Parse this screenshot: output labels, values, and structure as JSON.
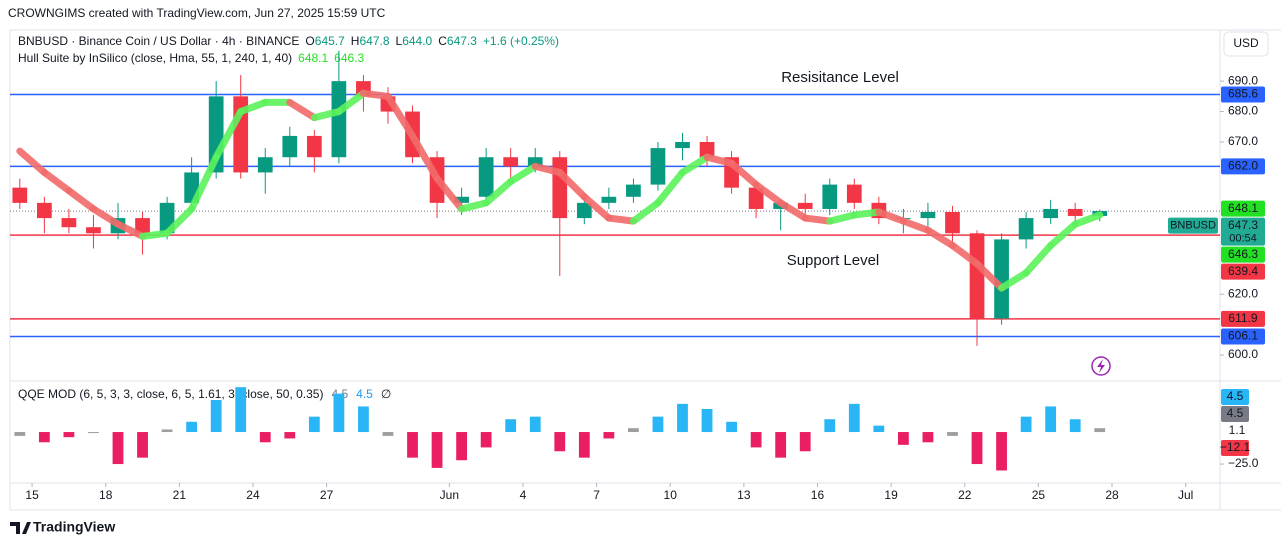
{
  "header": {
    "credit": "CROWNGIMS created with TradingView.com, Jun 27, 2025 15:59 UTC",
    "currency": "USD",
    "brand": "TradingView"
  },
  "chart_data": [
    {
      "type": "candlestick",
      "symbol": "BNBUSD · Binance Coin / US Dollar · 4h · BINANCE",
      "ohlc_legend": [
        {
          "key": "O",
          "value": 645.7
        },
        {
          "key": "H",
          "value": 647.8
        },
        {
          "key": "L",
          "value": 644,
          "label": "644.0"
        },
        {
          "key": "C",
          "value": 647.3
        }
      ],
      "change": "+1.6 (+0.25%)",
      "indicator": {
        "name": "Hull Suite by InSilico (close, Hma, 55, 1, 240, 1, 40)",
        "values": [
          648.1,
          646.3
        ],
        "color": "#22e022"
      },
      "x": [
        0,
        1,
        2,
        3,
        4,
        5,
        6,
        7,
        8,
        9,
        10,
        11,
        12,
        13,
        14,
        15,
        16,
        17,
        18,
        19,
        20,
        21,
        22,
        23,
        24,
        25,
        26,
        27,
        28,
        29,
        30,
        31,
        32,
        33,
        34,
        35,
        36,
        37,
        38,
        39,
        40,
        41,
        42,
        43,
        44
      ],
      "open": [
        655,
        650,
        645,
        642,
        640,
        645,
        640,
        650,
        660,
        685,
        660,
        665,
        672,
        665,
        690,
        685,
        680,
        665,
        650,
        652,
        665,
        662,
        665,
        645,
        650,
        652,
        656,
        668,
        670,
        665,
        655,
        648,
        650,
        648,
        656,
        650,
        645,
        645,
        647,
        640,
        612,
        638,
        645,
        648,
        645.7
      ],
      "high": [
        658,
        652,
        648,
        646,
        650,
        647,
        652,
        665,
        690,
        692,
        668,
        675,
        674,
        700,
        692,
        688,
        682,
        667,
        655,
        668,
        668,
        668,
        667,
        652,
        655,
        658,
        670,
        673,
        672,
        667,
        657,
        651,
        653,
        658,
        658,
        652,
        648,
        650,
        649,
        641,
        640,
        647,
        651,
        650,
        647.8
      ],
      "low": [
        648,
        640,
        640,
        635,
        638,
        633,
        638,
        648,
        658,
        658,
        653,
        662,
        660,
        663,
        680,
        676,
        663,
        645,
        646,
        650,
        658,
        660,
        626,
        643,
        648,
        650,
        654,
        664,
        662,
        653,
        645,
        641,
        645,
        646,
        648,
        643,
        640,
        641,
        636,
        603,
        610,
        635,
        643,
        643,
        644
      ],
      "close": [
        650,
        645,
        642,
        640,
        645,
        640,
        650,
        660,
        685,
        660,
        665,
        672,
        665,
        690,
        685,
        680,
        665,
        650,
        652,
        665,
        662,
        665,
        645,
        650,
        652,
        656,
        668,
        670,
        665,
        655,
        648,
        650,
        648,
        656,
        650,
        645,
        645,
        647,
        640,
        612,
        638,
        645,
        648,
        645.7,
        647.3
      ],
      "up_color": "#089981",
      "down_color": "#f23645",
      "hull": {
        "values": [
          667,
          660,
          654,
          648,
          643,
          639,
          640,
          648,
          665,
          680,
          683,
          683,
          678,
          680,
          686,
          685,
          672,
          658,
          648,
          650,
          657,
          662,
          660,
          652,
          645,
          644,
          650,
          660,
          665,
          663,
          656,
          650,
          645,
          644,
          646,
          647,
          644,
          641,
          636,
          630,
          622,
          627,
          636,
          643,
          646
        ],
        "up_color": "#5cf25c",
        "down_color": "#f26b6b"
      },
      "hlines": [
        {
          "value": 685.6,
          "color": "#2962ff"
        },
        {
          "value": 662,
          "label": "662.0",
          "color": "#2962ff"
        },
        {
          "value": 639.4,
          "color": "#f23645"
        },
        {
          "value": 611.9,
          "color": "#f23645"
        },
        {
          "value": 606.1,
          "color": "#2962ff"
        }
      ],
      "last": {
        "value": 647.3,
        "countdown": "00:54",
        "symbol": "BNBUSD",
        "color": "#22ab94"
      },
      "annotations": [
        {
          "text": "Resisitance Level",
          "color": "#f23645"
        },
        {
          "text": "Support Level",
          "color": "#f23645"
        }
      ],
      "xlim": [
        0.1,
        49.4
      ],
      "xticks": [
        {
          "value": 1,
          "label": "15"
        },
        {
          "value": 4,
          "label": "18"
        },
        {
          "value": 7,
          "label": "21"
        },
        {
          "value": 10,
          "label": "24"
        },
        {
          "value": 13,
          "label": "27"
        },
        {
          "value": 18,
          "label": "Jun"
        },
        {
          "value": 21,
          "label": "4"
        },
        {
          "value": 24,
          "label": "7"
        },
        {
          "value": 27,
          "label": "10"
        },
        {
          "value": 30,
          "label": "13"
        },
        {
          "value": 33,
          "label": "16"
        },
        {
          "value": 36,
          "label": "19"
        },
        {
          "value": 39,
          "label": "22"
        },
        {
          "value": 42,
          "label": "25"
        },
        {
          "value": 45,
          "label": "28"
        },
        {
          "value": 48,
          "label": "Jul"
        }
      ],
      "ylim": [
        591.8,
        706.8
      ],
      "yticks": [
        {
          "value": 600,
          "label": "600.0"
        },
        {
          "value": 620,
          "label": "620.0"
        },
        {
          "value": 670,
          "label": "670.0"
        },
        {
          "value": 680,
          "label": "680.0"
        },
        {
          "value": 690,
          "label": "690.0"
        }
      ],
      "grid": false
    },
    {
      "type": "bar",
      "name": "QQE MOD (6, 5, 3, 3, close, 6, 5, 1.61, 3, close, 50, 0.35)",
      "legend_values": [
        {
          "value": 4.5,
          "color": "#787b86"
        },
        {
          "value": 4.5,
          "color": "#2196f3"
        }
      ],
      "legend_symbol": "∅",
      "x": [
        0,
        1,
        2,
        3,
        4,
        5,
        6,
        7,
        8,
        9,
        10,
        11,
        12,
        13,
        14,
        15,
        16,
        17,
        18,
        19,
        20,
        21,
        22,
        23,
        24,
        25,
        26,
        27,
        28,
        29,
        30,
        31,
        32,
        33,
        34,
        35,
        36,
        37,
        38,
        39,
        40,
        41,
        42,
        43,
        44
      ],
      "values": [
        -3,
        -8,
        -4,
        0,
        -25,
        -20,
        2,
        8,
        25,
        35,
        -8,
        -5,
        12,
        30,
        20,
        -3,
        -20,
        -28,
        -22,
        -12,
        10,
        12,
        -15,
        -20,
        -5,
        3,
        12,
        22,
        18,
        8,
        -12,
        -20,
        -15,
        10,
        22,
        5,
        -10,
        -8,
        -3,
        -25,
        -30,
        12,
        20,
        10,
        3
      ],
      "pos_color": "#29b6f6",
      "neg_color": "#e91e63",
      "neutral_color": "#9e9e9e",
      "badges": [
        {
          "value": 4.5,
          "color": "#29b6f6"
        },
        {
          "value": 4.5,
          "color": "#787b86"
        },
        {
          "value": 1.1,
          "color": null
        },
        {
          "value": -12.1,
          "label": "−12.1",
          "color": "#f23645"
        }
      ],
      "xlim": [
        0.1,
        49.4
      ],
      "ylim": [
        -39,
        37.5
      ],
      "yticks": [
        {
          "value": -25,
          "label": "−25.0"
        }
      ]
    }
  ]
}
